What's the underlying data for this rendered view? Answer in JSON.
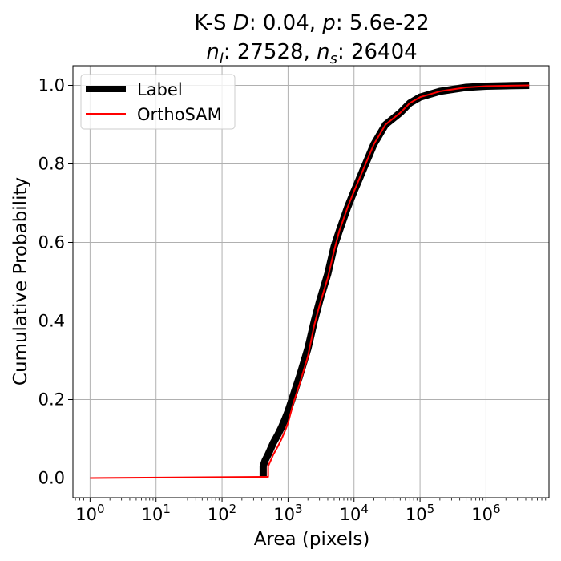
{
  "chart_data": {
    "type": "line",
    "title": {
      "line1": {
        "prefix": "K-S ",
        "D_symbol": "D",
        "D_text": ": 0.04, ",
        "p_symbol": "p",
        "p_text": ": 5.6e-22"
      },
      "line2": {
        "nl_symbol": "n",
        "nl_sub": "l",
        "nl_text": ": 27528, ",
        "ns_symbol": "n",
        "ns_sub": "s",
        "ns_text": ": 26404"
      }
    },
    "xlabel": "Area (pixels)",
    "ylabel": "Cumulative Probability",
    "x_scale": "log",
    "xlim": [
      0.55,
      9000000
    ],
    "ylim": [
      -0.05,
      1.05
    ],
    "grid": true,
    "legend_position": "top-left",
    "x_ticks": [
      {
        "value": 1,
        "base": "10",
        "exp": "0"
      },
      {
        "value": 10,
        "base": "10",
        "exp": "1"
      },
      {
        "value": 100,
        "base": "10",
        "exp": "2"
      },
      {
        "value": 1000,
        "base": "10",
        "exp": "3"
      },
      {
        "value": 10000,
        "base": "10",
        "exp": "4"
      },
      {
        "value": 100000,
        "base": "10",
        "exp": "5"
      },
      {
        "value": 1000000,
        "base": "10",
        "exp": "6"
      }
    ],
    "y_ticks": [
      {
        "value": 0.0,
        "label": "0.0"
      },
      {
        "value": 0.2,
        "label": "0.2"
      },
      {
        "value": 0.4,
        "label": "0.4"
      },
      {
        "value": 0.6,
        "label": "0.6"
      },
      {
        "value": 0.8,
        "label": "0.8"
      },
      {
        "value": 1.0,
        "label": "1.0"
      }
    ],
    "series": [
      {
        "name": "Label",
        "color": "#000000",
        "style": "thick",
        "x": [
          420,
          420,
          450,
          500,
          600,
          700,
          800,
          900,
          1000,
          1200,
          1500,
          2000,
          2500,
          3000,
          4000,
          5000,
          6000,
          8000,
          10000,
          15000,
          20000,
          30000,
          50000,
          70000,
          100000,
          200000,
          500000,
          1000000,
          2000000,
          4500000
        ],
        "y": [
          0.0,
          0.03,
          0.045,
          0.06,
          0.09,
          0.11,
          0.13,
          0.15,
          0.17,
          0.21,
          0.26,
          0.33,
          0.4,
          0.45,
          0.52,
          0.59,
          0.63,
          0.69,
          0.73,
          0.8,
          0.85,
          0.9,
          0.93,
          0.955,
          0.97,
          0.985,
          0.995,
          0.998,
          0.999,
          1.0
        ]
      },
      {
        "name": "OrthoSAM",
        "color": "#ff0000",
        "style": "thin",
        "x": [
          1,
          460,
          500,
          500,
          600,
          700,
          800,
          900,
          1000,
          1200,
          1500,
          2000,
          2500,
          3000,
          4000,
          5000,
          6000,
          8000,
          10000,
          15000,
          20000,
          30000,
          50000,
          70000,
          100000,
          200000,
          500000,
          1000000,
          2000000,
          4500000
        ],
        "y": [
          0.0,
          0.003,
          0.003,
          0.03,
          0.06,
          0.08,
          0.1,
          0.12,
          0.14,
          0.19,
          0.24,
          0.31,
          0.39,
          0.44,
          0.51,
          0.58,
          0.63,
          0.69,
          0.73,
          0.8,
          0.85,
          0.9,
          0.93,
          0.955,
          0.97,
          0.985,
          0.995,
          0.998,
          0.999,
          1.0
        ]
      }
    ]
  }
}
